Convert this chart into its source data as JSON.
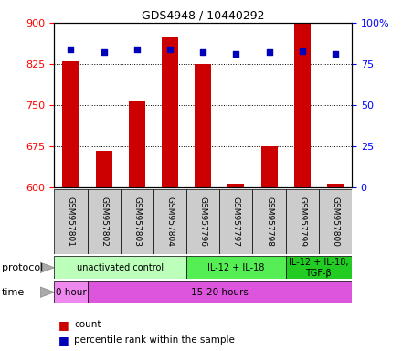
{
  "title": "GDS4948 / 10440292",
  "samples": [
    "GSM957801",
    "GSM957802",
    "GSM957803",
    "GSM957804",
    "GSM957796",
    "GSM957797",
    "GSM957798",
    "GSM957799",
    "GSM957800"
  ],
  "counts": [
    830,
    668,
    757,
    875,
    825,
    608,
    676,
    920,
    607
  ],
  "percentiles": [
    84,
    82,
    84,
    84,
    82,
    81,
    82,
    83,
    81
  ],
  "ylim_left": [
    600,
    900
  ],
  "ylim_right": [
    0,
    100
  ],
  "yticks_left": [
    600,
    675,
    750,
    825,
    900
  ],
  "yticks_right": [
    0,
    25,
    50,
    75,
    100
  ],
  "bar_color": "#cc0000",
  "dot_color": "#0000bb",
  "protocol_groups": [
    {
      "label": "unactivated control",
      "start": 0,
      "end": 4,
      "color": "#bbffbb"
    },
    {
      "label": "IL-12 + IL-18",
      "start": 4,
      "end": 7,
      "color": "#55ee55"
    },
    {
      "label": "IL-12 + IL-18,\nTGF-β",
      "start": 7,
      "end": 9,
      "color": "#22cc22"
    }
  ],
  "time_groups": [
    {
      "label": "0 hour",
      "start": 0,
      "end": 1,
      "color": "#ee88ee"
    },
    {
      "label": "15-20 hours",
      "start": 1,
      "end": 9,
      "color": "#dd55dd"
    }
  ],
  "bar_width": 0.5,
  "background_color": "#ffffff",
  "sample_box_color": "#cccccc"
}
